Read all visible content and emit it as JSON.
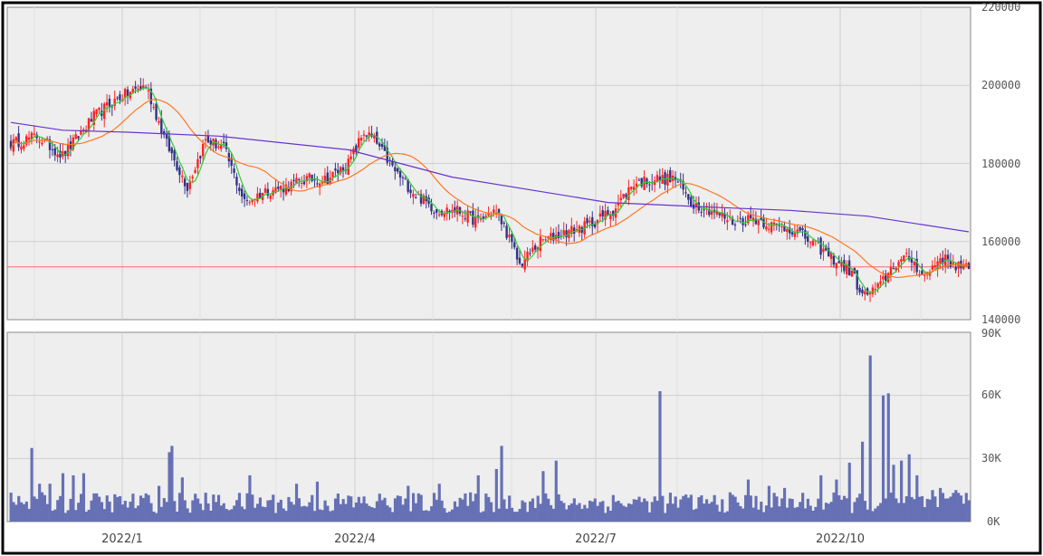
{
  "chart_data": [
    {
      "type": "candlestick",
      "title": "",
      "ylim": [
        140000,
        220000
      ],
      "y_ticks": [
        "220000",
        "200000",
        "180000",
        "160000",
        "140000"
      ],
      "x_tick_labels": [
        "2022/1",
        "2022/4",
        "2022/7",
        "2022/10"
      ],
      "grid": true,
      "reference_line": {
        "value": 153500,
        "color": "#ff6666"
      },
      "candles_start_close": 185000,
      "close_anchors": [
        [
          0,
          185000
        ],
        [
          10,
          187000
        ],
        [
          20,
          182000
        ],
        [
          32,
          192000
        ],
        [
          42,
          197000
        ],
        [
          52,
          200000
        ],
        [
          60,
          185000
        ],
        [
          68,
          174000
        ],
        [
          75,
          186000
        ],
        [
          82,
          184000
        ],
        [
          90,
          170000
        ],
        [
          98,
          173000
        ],
        [
          106,
          174000
        ],
        [
          114,
          176000
        ],
        [
          122,
          176000
        ],
        [
          130,
          180000
        ],
        [
          136,
          188000
        ],
        [
          140,
          186000
        ],
        [
          148,
          178000
        ],
        [
          156,
          172000
        ],
        [
          164,
          168000
        ],
        [
          172,
          168000
        ],
        [
          180,
          165000
        ],
        [
          186,
          168000
        ],
        [
          190,
          164000
        ],
        [
          196,
          154000
        ],
        [
          204,
          160000
        ],
        [
          212,
          162000
        ],
        [
          222,
          164000
        ],
        [
          232,
          168000
        ],
        [
          240,
          175000
        ],
        [
          248,
          176000
        ],
        [
          256,
          176000
        ],
        [
          262,
          170000
        ],
        [
          270,
          168000
        ],
        [
          278,
          165000
        ],
        [
          286,
          166000
        ],
        [
          294,
          164000
        ],
        [
          302,
          163000
        ],
        [
          310,
          159000
        ],
        [
          318,
          155000
        ],
        [
          324,
          152000
        ],
        [
          328,
          146000
        ],
        [
          334,
          148000
        ],
        [
          340,
          154000
        ],
        [
          346,
          156000
        ],
        [
          352,
          151000
        ],
        [
          358,
          156000
        ],
        [
          364,
          154000
        ],
        [
          369,
          153000
        ]
      ],
      "series": [
        {
          "name": "",
          "kind": "sma",
          "period": 5,
          "color": "#33cc33"
        },
        {
          "name": "",
          "kind": "sma",
          "period": 25,
          "color": "#ff7722"
        },
        {
          "name": "",
          "kind": "line",
          "color": "#6633cc",
          "points": [
            [
              0,
              190500
            ],
            [
              20,
              188500
            ],
            [
              45,
              188000
            ],
            [
              80,
              187000
            ],
            [
              130,
              183500
            ],
            [
              170,
              176500
            ],
            [
              230,
              170000
            ],
            [
              270,
              168800
            ],
            [
              300,
              168000
            ],
            [
              330,
              166500
            ],
            [
              369,
              162500
            ]
          ]
        }
      ],
      "up_color": "#ff2222",
      "down_color": "#333388"
    },
    {
      "type": "bar",
      "title": "",
      "ylim": [
        0,
        90000
      ],
      "y_ticks": [
        "90K",
        "60K",
        "30K",
        "0K"
      ],
      "x_tick_labels": [
        "2022/1",
        "2022/4",
        "2022/7",
        "2022/10"
      ],
      "bar_color": "#6670b4",
      "base_level": 9000,
      "spikes": [
        [
          8,
          35000
        ],
        [
          11,
          18000
        ],
        [
          15,
          18000
        ],
        [
          20,
          23000
        ],
        [
          24,
          22000
        ],
        [
          28,
          23000
        ],
        [
          57,
          17000
        ],
        [
          61,
          33000
        ],
        [
          62,
          36000
        ],
        [
          66,
          21000
        ],
        [
          92,
          22000
        ],
        [
          110,
          18000
        ],
        [
          118,
          19000
        ],
        [
          153,
          17000
        ],
        [
          165,
          18000
        ],
        [
          180,
          22000
        ],
        [
          187,
          25000
        ],
        [
          189,
          36000
        ],
        [
          205,
          24000
        ],
        [
          210,
          29000
        ],
        [
          250,
          62000
        ],
        [
          284,
          20000
        ],
        [
          292,
          17000
        ],
        [
          298,
          16000
        ],
        [
          312,
          22000
        ],
        [
          318,
          20000
        ],
        [
          323,
          28000
        ],
        [
          328,
          38000
        ],
        [
          331,
          79000
        ],
        [
          336,
          60000
        ],
        [
          338,
          61000
        ],
        [
          340,
          27000
        ],
        [
          343,
          29000
        ],
        [
          346,
          32000
        ],
        [
          349,
          22000
        ],
        [
          355,
          15000
        ],
        [
          358,
          16000
        ],
        [
          361,
          11000
        ],
        [
          364,
          15000
        ]
      ]
    }
  ]
}
